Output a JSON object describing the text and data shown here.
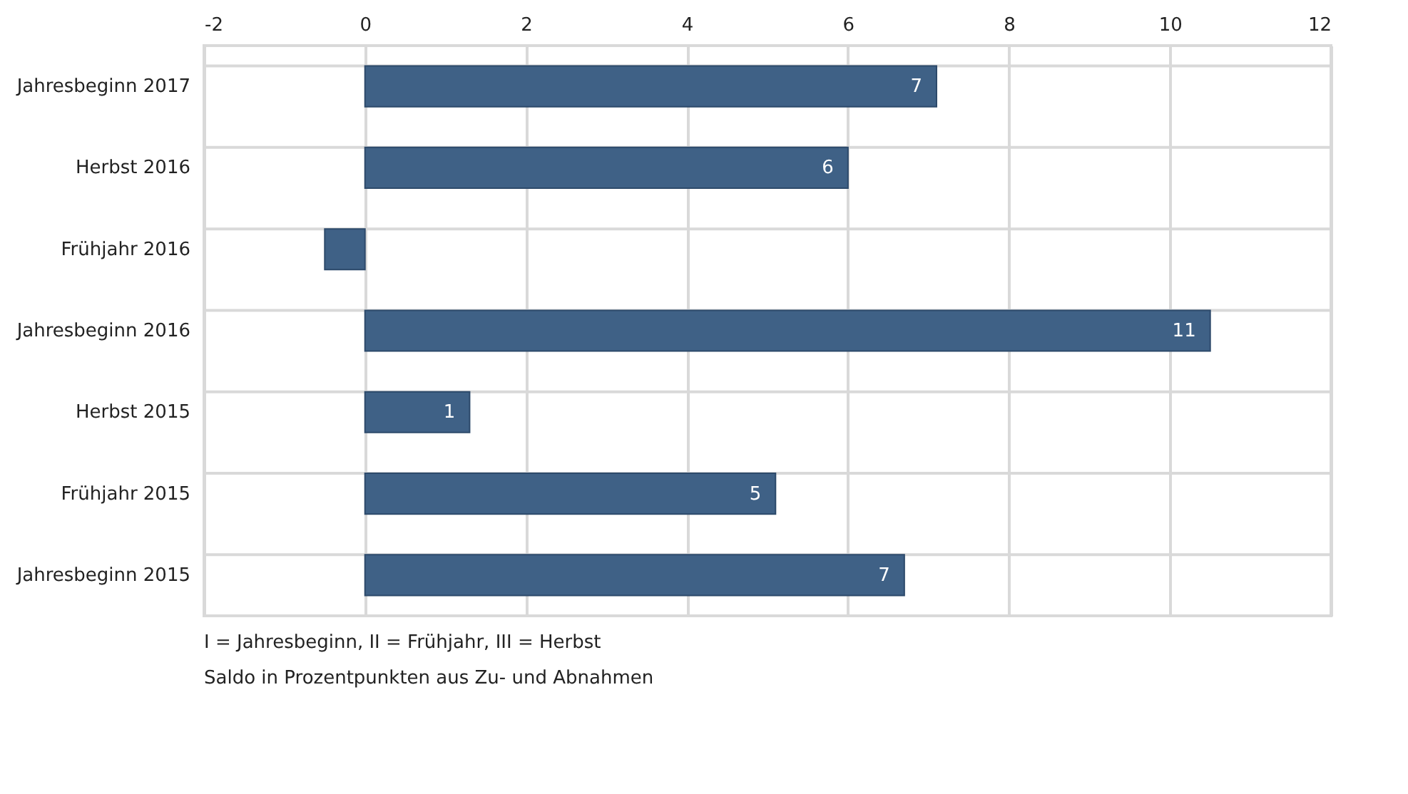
{
  "chart_data": {
    "type": "bar",
    "orientation": "horizontal",
    "categories": [
      "Jahresbeginn 2017",
      "Herbst 2016",
      "Frühjahr 2016",
      "Jahresbeginn 2016",
      "Herbst 2015",
      "Frühjahr 2015",
      "Jahresbeginn 2015"
    ],
    "values": [
      7.1,
      6.0,
      -0.5,
      10.5,
      1.3,
      5.1,
      6.7
    ],
    "value_labels": [
      "7",
      "6",
      null,
      "11",
      "1",
      "5",
      "7"
    ],
    "color": "#3f6186",
    "xlim": [
      -2,
      12
    ],
    "xticks": [
      -2,
      0,
      2,
      4,
      6,
      8,
      10,
      12
    ],
    "grid": true,
    "annotations": [
      "I = Jahresbeginn, II = Frühjahr, III = Herbst",
      "Saldo in Prozentpunkten aus Zu- und Abnahmen"
    ]
  }
}
